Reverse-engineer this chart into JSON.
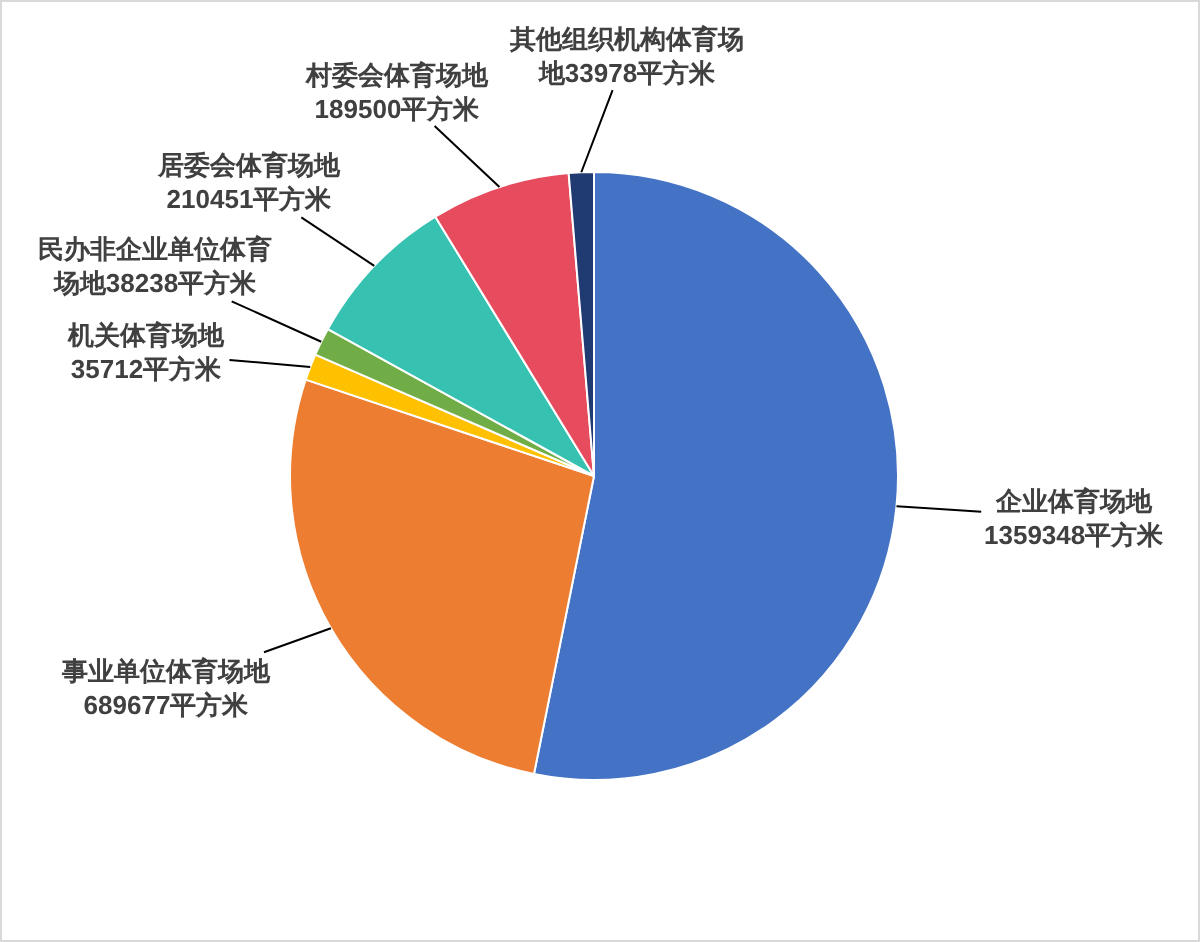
{
  "chart_data": {
    "type": "pie",
    "categories": [
      "企业体育场地",
      "事业单位体育场地",
      "机关体育场地",
      "民办非企业单位体育场地",
      "居委会体育场地",
      "村委会体育场地",
      "其他组织机构体育场地"
    ],
    "values": [
      1359348,
      689677,
      35712,
      38238,
      210451,
      189500,
      33978
    ],
    "value_labels": [
      "1359348平方米",
      "689677平方米",
      "35712平方米",
      "38238平方米",
      "210451平方米",
      "189500平方米",
      "33978平方米"
    ],
    "colors": [
      "#4472c4",
      "#ed7d31",
      "#ffc000",
      "#70ad47",
      "#36c1b1",
      "#e64b5e",
      "#203a72"
    ],
    "legend": false
  }
}
